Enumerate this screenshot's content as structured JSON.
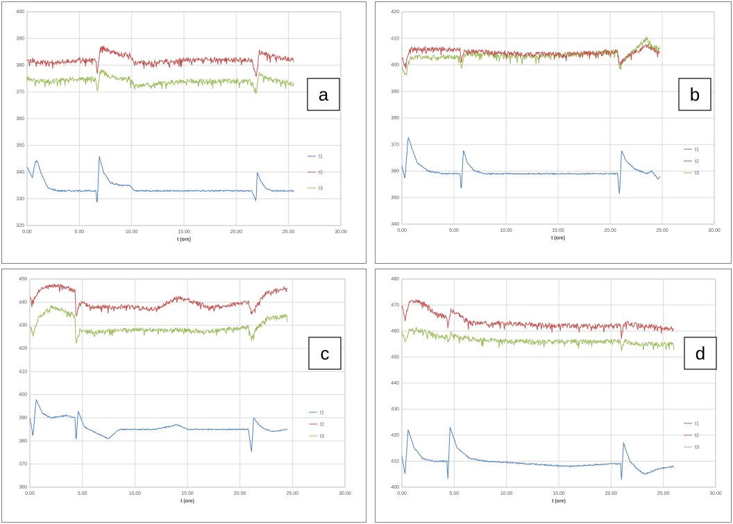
{
  "chart_data": [
    {
      "type": "line",
      "panel_label": "a",
      "xlabel": "t (ore)",
      "ylabel": "",
      "xlim": [
        0,
        30
      ],
      "ylim": [
        320,
        400
      ],
      "x_ticks": [
        "0.00",
        "5.00",
        "10.00",
        "15.00",
        "20.00",
        "25.00",
        "30.00"
      ],
      "y_ticks": [
        "320",
        "330",
        "340",
        "350",
        "360",
        "370",
        "380",
        "390",
        "400"
      ],
      "grid": true,
      "legend_position": "right",
      "series": [
        {
          "name": "t1",
          "color": "#4f81bd",
          "x": [
            0,
            0.5,
            0.8,
            1.0,
            1.3,
            2.0,
            3.0,
            5.0,
            6.6,
            6.7,
            6.9,
            7.3,
            8.0,
            9.0,
            9.8,
            10.3,
            11.0,
            15.0,
            21.5,
            21.9,
            22.0,
            22.3,
            22.8,
            23.5,
            25.5
          ],
          "y": [
            342,
            338,
            344,
            344,
            340,
            334,
            333,
            333,
            333,
            327,
            346,
            340,
            336,
            335,
            335,
            333,
            333,
            333,
            333,
            329,
            340,
            337,
            334,
            333,
            333
          ]
        },
        {
          "name": "t2",
          "color": "#c0504d",
          "x": [
            0,
            0.5,
            1.0,
            2.0,
            5.0,
            6.6,
            6.7,
            7.0,
            8.0,
            9.0,
            9.8,
            10.3,
            12.0,
            15.0,
            21.5,
            21.9,
            22.2,
            23.0,
            24.0,
            25.5
          ],
          "y": [
            381,
            382,
            381,
            381,
            382,
            382,
            376,
            387,
            385,
            384,
            384,
            381,
            381,
            382,
            382,
            376,
            385,
            384,
            383,
            382
          ]
        },
        {
          "name": "t3",
          "color": "#9bbb59",
          "x": [
            0,
            0.5,
            1.0,
            2.0,
            5.0,
            6.6,
            6.7,
            7.0,
            8.0,
            9.0,
            9.8,
            10.3,
            12.0,
            15.0,
            21.5,
            21.9,
            22.2,
            23.0,
            24.0,
            25.5
          ],
          "y": [
            375,
            375,
            374,
            374,
            375,
            375,
            370,
            378,
            376,
            375,
            375,
            372,
            373,
            374,
            374,
            370,
            377,
            375,
            374,
            373
          ]
        }
      ]
    },
    {
      "type": "line",
      "panel_label": "b",
      "xlabel": "t (ore)",
      "ylabel": "",
      "xlim": [
        0,
        30
      ],
      "ylim": [
        340,
        420
      ],
      "x_ticks": [
        "0.00",
        "5.00",
        "10.00",
        "15.00",
        "20.00",
        "25.00",
        "30.00"
      ],
      "y_ticks": [
        "340",
        "350",
        "360",
        "370",
        "380",
        "390",
        "400",
        "410",
        "420"
      ],
      "grid": true,
      "legend_position": "right",
      "series": [
        {
          "name": "t1",
          "color": "#4f81bd",
          "x": [
            0,
            0.3,
            0.6,
            1.0,
            1.5,
            2.5,
            4.0,
            5.6,
            5.7,
            5.9,
            6.3,
            7.0,
            8.0,
            15.0,
            20.7,
            20.9,
            21.1,
            21.5,
            22.3,
            23.5,
            24.0,
            24.6,
            24.8
          ],
          "y": [
            362,
            357,
            373,
            368,
            363,
            360,
            359,
            359,
            352,
            368,
            363,
            360,
            359,
            359,
            359,
            351,
            368,
            364,
            361,
            359,
            360,
            357,
            358
          ]
        },
        {
          "name": "t2",
          "color": "#c0504d",
          "x": [
            0,
            0.3,
            0.8,
            2.0,
            4.0,
            5.6,
            5.7,
            6.0,
            8.0,
            12.0,
            16.0,
            20.7,
            20.9,
            21.3,
            22.5,
            23.5,
            24.0,
            24.8
          ],
          "y": [
            403,
            400,
            406,
            406,
            406,
            406,
            401,
            405,
            405,
            404,
            404,
            405,
            400,
            402,
            405,
            407,
            406,
            405
          ]
        },
        {
          "name": "t3",
          "color": "#9bbb59",
          "x": [
            0,
            0.3,
            0.8,
            2.0,
            4.0,
            5.6,
            5.7,
            6.0,
            8.0,
            12.0,
            16.0,
            20.7,
            20.9,
            21.3,
            22.5,
            23.5,
            24.0,
            24.8
          ],
          "y": [
            400,
            396,
            403,
            403,
            403,
            403,
            399,
            404,
            404,
            403,
            404,
            405,
            399,
            402,
            406,
            410,
            407,
            406
          ]
        }
      ]
    },
    {
      "type": "line",
      "panel_label": "c",
      "xlabel": "t (ore)",
      "ylabel": "",
      "xlim": [
        0,
        30
      ],
      "ylim": [
        360,
        450
      ],
      "x_ticks": [
        "0.00",
        "5.00",
        "10.00",
        "15.00",
        "20.00",
        "25.00",
        "30.00"
      ],
      "y_ticks": [
        "360",
        "370",
        "380",
        "390",
        "400",
        "410",
        "420",
        "430",
        "440",
        "450"
      ],
      "grid": true,
      "legend_position": "right",
      "series": [
        {
          "name": "t1",
          "color": "#4f81bd",
          "x": [
            0,
            0.3,
            0.6,
            1.2,
            2.0,
            3.5,
            4.3,
            4.4,
            4.6,
            5.2,
            6.5,
            7.5,
            8.5,
            10.0,
            12.0,
            14.0,
            15.0,
            17.0,
            19.0,
            20.8,
            21.1,
            21.3,
            22.0,
            23.0,
            24.5
          ],
          "y": [
            390,
            382,
            398,
            392,
            390,
            391,
            390,
            379,
            393,
            386,
            383,
            381,
            385,
            385,
            385,
            387,
            385,
            385,
            385,
            385,
            375,
            390,
            386,
            384,
            385
          ]
        },
        {
          "name": "t2",
          "color": "#c0504d",
          "x": [
            0,
            0.3,
            0.8,
            2.0,
            3.0,
            4.3,
            4.4,
            4.7,
            6.0,
            9.0,
            12.0,
            14.0,
            15.0,
            17.0,
            18.0,
            20.8,
            21.1,
            21.5,
            22.5,
            24.5
          ],
          "y": [
            442,
            440,
            445,
            447,
            447,
            445,
            433,
            440,
            438,
            438,
            437,
            442,
            441,
            438,
            438,
            440,
            435,
            438,
            444,
            446
          ]
        },
        {
          "name": "t3",
          "color": "#9bbb59",
          "x": [
            0,
            0.3,
            0.8,
            2.0,
            3.0,
            4.3,
            4.4,
            4.7,
            6.0,
            9.0,
            12.0,
            14.0,
            15.0,
            17.0,
            18.0,
            20.8,
            21.1,
            21.5,
            22.5,
            24.5
          ],
          "y": [
            430,
            426,
            433,
            438,
            437,
            434,
            421,
            428,
            427,
            428,
            428,
            428,
            428,
            427,
            428,
            429,
            424,
            428,
            433,
            434
          ]
        }
      ]
    },
    {
      "type": "line",
      "panel_label": "d",
      "xlabel": "t (ore)",
      "ylabel": "",
      "xlim": [
        0,
        30
      ],
      "ylim": [
        400,
        480
      ],
      "x_ticks": [
        "0.00",
        "5.00",
        "10.00",
        "15.00",
        "20.00",
        "25.00",
        "30.00"
      ],
      "y_ticks": [
        "400",
        "410",
        "420",
        "430",
        "440",
        "450",
        "460",
        "470",
        "480"
      ],
      "grid": true,
      "legend_position": "right",
      "series": [
        {
          "name": "t1",
          "color": "#4f81bd",
          "x": [
            0,
            0.3,
            0.6,
            1.2,
            2.0,
            3.0,
            4.3,
            4.4,
            4.6,
            5.3,
            6.5,
            8.0,
            12.0,
            16.0,
            20.0,
            20.9,
            21.0,
            21.2,
            21.8,
            22.5,
            23.2,
            24.5,
            26.0
          ],
          "y": [
            412,
            405,
            422,
            415,
            411,
            410,
            410,
            403,
            423,
            415,
            411,
            410,
            409,
            408,
            409,
            409,
            403,
            417,
            410,
            407,
            405,
            407,
            408
          ]
        },
        {
          "name": "t2",
          "color": "#c0504d",
          "x": [
            0,
            0.3,
            0.8,
            2.0,
            3.5,
            4.3,
            4.4,
            4.7,
            5.3,
            6.5,
            10.0,
            15.0,
            20.9,
            21.0,
            21.3,
            23.0,
            26.0
          ],
          "y": [
            470,
            465,
            472,
            471,
            466,
            466,
            462,
            468,
            467,
            463,
            463,
            462,
            462,
            459,
            463,
            462,
            461
          ]
        },
        {
          "name": "t3",
          "color": "#9bbb59",
          "x": [
            0,
            0.3,
            0.8,
            2.0,
            3.5,
            4.3,
            4.4,
            4.7,
            5.3,
            6.5,
            10.0,
            15.0,
            20.9,
            21.0,
            21.3,
            23.0,
            26.0
          ],
          "y": [
            460,
            456,
            461,
            460,
            458,
            458,
            455,
            459,
            458,
            457,
            456,
            456,
            456,
            453,
            456,
            455,
            455
          ]
        }
      ]
    }
  ]
}
